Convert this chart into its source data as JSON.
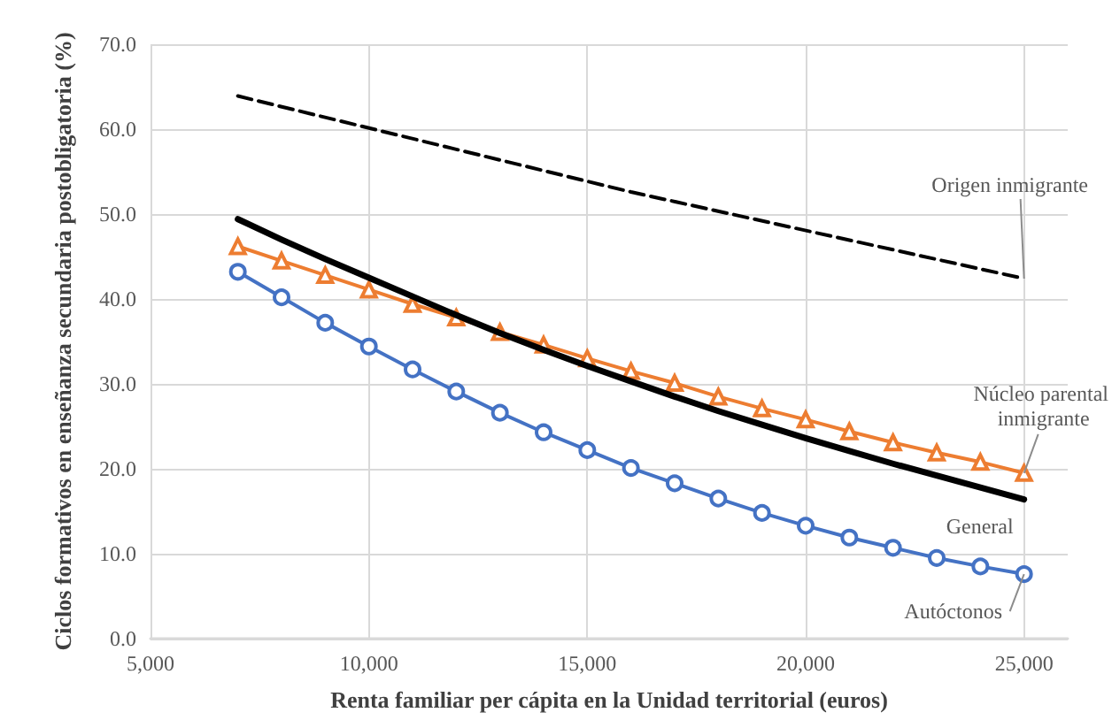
{
  "chart_data": {
    "type": "line",
    "xlabel": "Renta familiar per cápita en la Unidad territorial (euros)",
    "ylabel": "Ciclos formativos en enseñanza secundaria postobligatoria (%)",
    "x": [
      7000,
      8000,
      9000,
      10000,
      11000,
      12000,
      13000,
      14000,
      15000,
      16000,
      17000,
      18000,
      19000,
      20000,
      21000,
      22000,
      23000,
      24000,
      25000
    ],
    "series": [
      {
        "name": "Origen inmigrante",
        "color": "#000000",
        "line_style": "dashed",
        "marker": "none",
        "x": [
          7000,
          16000,
          25000
        ],
        "values": [
          63.9,
          52.6,
          42.4
        ]
      },
      {
        "name": "Núcleo parental inmigrante",
        "color": "#ed7d31",
        "line_style": "solid",
        "marker": "triangle",
        "values": [
          46.2,
          44.5,
          42.8,
          41.1,
          39.4,
          37.8,
          36.1,
          34.6,
          33.0,
          31.5,
          30.1,
          28.5,
          27.1,
          25.8,
          24.4,
          23.1,
          21.9,
          20.8,
          19.5
        ]
      },
      {
        "name": "General",
        "color": "#000000",
        "line_style": "solid",
        "marker": "none",
        "values": [
          49.4,
          47.0,
          44.7,
          42.5,
          40.3,
          38.1,
          36.0,
          34.0,
          32.1,
          30.3,
          28.5,
          26.8,
          25.2,
          23.6,
          22.1,
          20.6,
          19.2,
          17.8,
          16.4
        ]
      },
      {
        "name": "Autóctonos",
        "color": "#4472c4",
        "line_style": "solid",
        "marker": "circle",
        "values": [
          43.2,
          40.2,
          37.2,
          34.4,
          31.7,
          29.1,
          26.6,
          24.3,
          22.2,
          20.1,
          18.3,
          16.5,
          14.8,
          13.3,
          11.9,
          10.7,
          9.5,
          8.5,
          7.6
        ]
      }
    ],
    "xlim": [
      5000,
      26000
    ],
    "xticks": [
      {
        "value": 5000,
        "label": "5,000"
      },
      {
        "value": 10000,
        "label": "10,000"
      },
      {
        "value": 15000,
        "label": "15,000"
      },
      {
        "value": 20000,
        "label": "20,000"
      },
      {
        "value": 25000,
        "label": "25,000"
      }
    ],
    "ylim": [
      0,
      70
    ],
    "yticks": [
      {
        "value": 0,
        "label": "0.0"
      },
      {
        "value": 10,
        "label": "10.0"
      },
      {
        "value": 20,
        "label": "20.0"
      },
      {
        "value": 30,
        "label": "30.0"
      },
      {
        "value": 40,
        "label": "40.0"
      },
      {
        "value": 50,
        "label": "50.0"
      },
      {
        "value": 60,
        "label": "60.0"
      },
      {
        "value": 70,
        "label": "70.0"
      }
    ],
    "grid": true,
    "legend": false
  }
}
